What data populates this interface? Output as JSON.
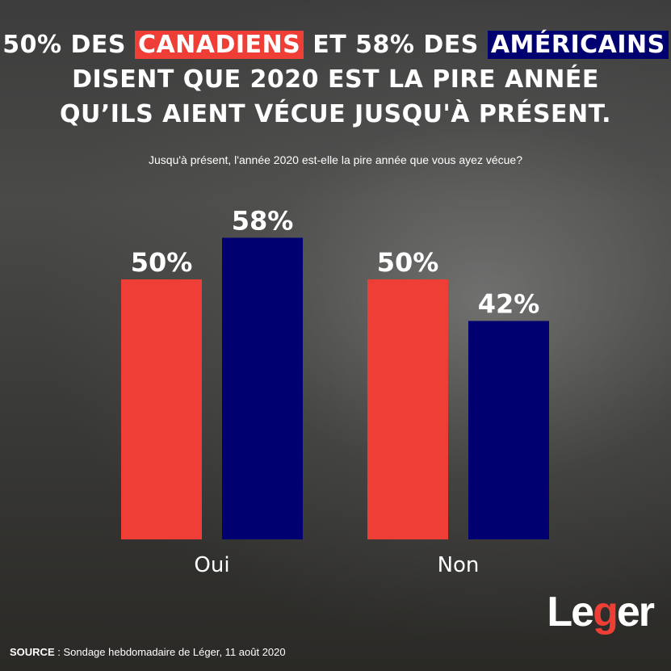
{
  "title": {
    "part1": "50% DES ",
    "canadiens": "CANADIENS",
    "part2": " ET 58% DES ",
    "americains": "AMÉRICAINS",
    "part3": "DISENT QUE 2020 EST LA PIRE ANNÉE QU’ILS AIENT VÉCUE JUSQU'À PRÉSENT."
  },
  "question": "Jusqu'à présent, l'année 2020 est-elle la pire année que vous ayez vécue?",
  "chart_data": {
    "type": "bar",
    "categories": [
      "Oui",
      "Non"
    ],
    "series": [
      {
        "name": "CANADIENS",
        "color": "#ef3e36",
        "values": [
          50,
          50
        ],
        "labels": [
          "50%",
          "50%"
        ]
      },
      {
        "name": "AMÉRICAINS",
        "color": "#000070",
        "values": [
          58,
          42
        ],
        "labels": [
          "58%",
          "42%"
        ]
      }
    ],
    "ylim": [
      0,
      100
    ],
    "grid": false
  },
  "source": {
    "label": "SOURCE",
    "text": " : Sondage hebdomadaire de Léger, 11 août 2020"
  },
  "logo": {
    "text": "Léger",
    "before": "Le",
    "mark": "g",
    "after": "er"
  }
}
